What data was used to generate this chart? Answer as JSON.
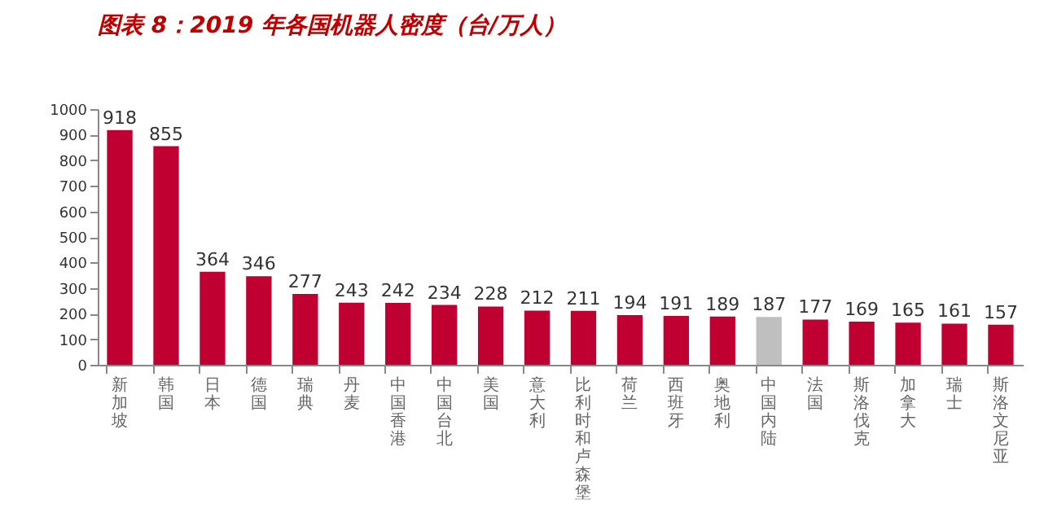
{
  "chart_data": {
    "type": "bar",
    "title": "图表 8：2019 年各国机器人密度（台/万人）",
    "categories": [
      "新加坡",
      "韩国",
      "日本",
      "德国",
      "瑞典",
      "丹麦",
      "中国香港",
      "中国台北",
      "美国",
      "意大利",
      "比利时和卢森堡",
      "荷兰",
      "西班牙",
      "奥地利",
      "中国内陆",
      "法国",
      "斯洛伐克",
      "加拿大",
      "瑞士",
      "斯洛文尼亚"
    ],
    "values": [
      918,
      855,
      364,
      346,
      277,
      243,
      242,
      234,
      228,
      212,
      211,
      194,
      191,
      189,
      187,
      177,
      169,
      165,
      161,
      157
    ],
    "colors": [
      "#c00030",
      "#c00030",
      "#c00030",
      "#c00030",
      "#c00030",
      "#c00030",
      "#c00030",
      "#c00030",
      "#c00030",
      "#c00030",
      "#c00030",
      "#c00030",
      "#c00030",
      "#c00030",
      "#bfbfbf",
      "#c00030",
      "#c00030",
      "#c00030",
      "#c00030",
      "#c00030"
    ],
    "ylim": [
      0,
      1000
    ],
    "yticks": [
      0,
      100,
      200,
      300,
      400,
      500,
      600,
      700,
      800,
      900,
      1000
    ],
    "data_labels": true,
    "grid": false
  }
}
